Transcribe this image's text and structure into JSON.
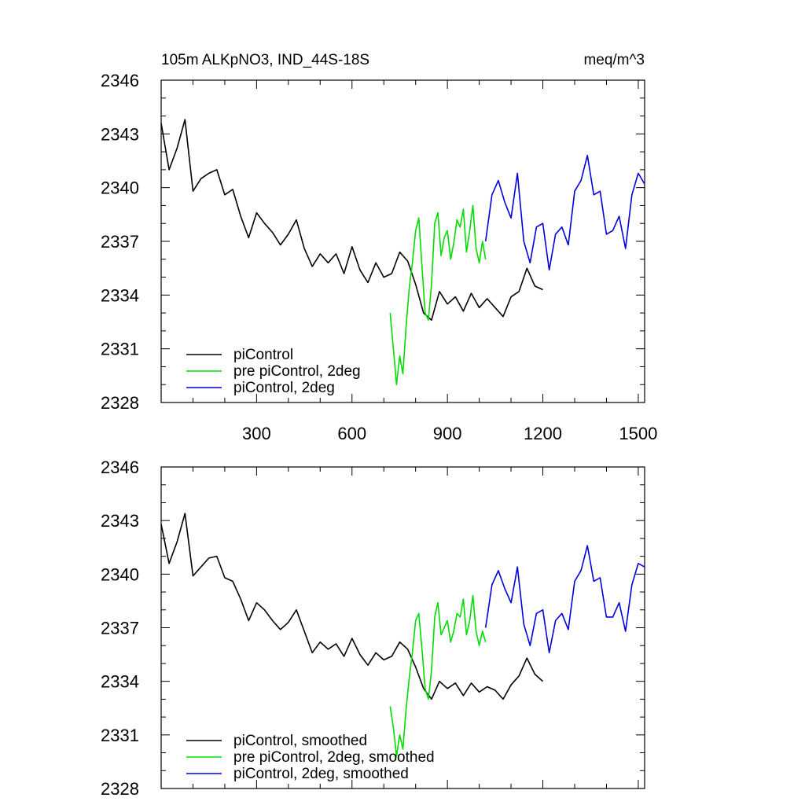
{
  "chart_data": [
    {
      "type": "line",
      "title_left": "105m ALKpNO3, IND_44S-18S",
      "title_right": "meq/m^3",
      "xlim": [
        0,
        1520
      ],
      "ylim": [
        2328,
        2346
      ],
      "xticks": [
        300,
        600,
        900,
        1200,
        1500
      ],
      "yticks": [
        2328,
        2331,
        2334,
        2337,
        2340,
        2343,
        2346
      ],
      "show_xtick_labels": true,
      "series": [
        {
          "name": "piControl",
          "color": "#000000",
          "x": [
            0,
            25,
            50,
            75,
            100,
            125,
            150,
            175,
            200,
            225,
            250,
            275,
            300,
            325,
            350,
            375,
            400,
            425,
            450,
            475,
            500,
            525,
            550,
            575,
            600,
            625,
            650,
            675,
            700,
            725,
            750,
            775,
            800,
            825,
            850,
            875,
            900,
            925,
            950,
            975,
            1000,
            1025,
            1050,
            1075,
            1100,
            1125,
            1150,
            1175,
            1200
          ],
          "values": [
            2343.6,
            2341.0,
            2342.2,
            2343.8,
            2339.8,
            2340.5,
            2340.8,
            2341.0,
            2339.6,
            2339.9,
            2338.4,
            2337.2,
            2338.6,
            2338.0,
            2337.5,
            2336.8,
            2337.4,
            2338.2,
            2336.6,
            2335.6,
            2336.3,
            2335.8,
            2336.3,
            2335.2,
            2336.7,
            2335.4,
            2334.7,
            2335.8,
            2335.0,
            2335.2,
            2336.4,
            2335.9,
            2334.6,
            2333.0,
            2332.6,
            2334.2,
            2333.5,
            2333.9,
            2333.1,
            2334.1,
            2333.3,
            2333.8,
            2333.3,
            2332.8,
            2333.9,
            2334.2,
            2335.5,
            2334.5,
            2334.3
          ]
        },
        {
          "name": "pre piControl, 2deg",
          "color": "#00dd00",
          "x": [
            720,
            730,
            740,
            750,
            760,
            770,
            780,
            790,
            800,
            810,
            820,
            830,
            840,
            850,
            860,
            870,
            880,
            890,
            900,
            910,
            920,
            930,
            940,
            950,
            960,
            970,
            980,
            990,
            1000,
            1010,
            1020
          ],
          "values": [
            2333.0,
            2331.0,
            2329.0,
            2330.6,
            2329.6,
            2332.2,
            2334.4,
            2335.8,
            2337.6,
            2338.3,
            2335.6,
            2333.0,
            2332.6,
            2334.6,
            2338.0,
            2338.6,
            2336.2,
            2337.2,
            2337.6,
            2336.0,
            2336.9,
            2338.2,
            2337.8,
            2338.8,
            2336.4,
            2337.6,
            2339.0,
            2336.6,
            2335.8,
            2337.0,
            2336.0
          ]
        },
        {
          "name": "piControl, 2deg",
          "color": "#0000dd",
          "x": [
            1020,
            1040,
            1060,
            1080,
            1100,
            1120,
            1140,
            1160,
            1180,
            1200,
            1220,
            1240,
            1260,
            1280,
            1300,
            1320,
            1340,
            1360,
            1380,
            1400,
            1420,
            1440,
            1460,
            1480,
            1500,
            1520
          ],
          "values": [
            2337.0,
            2339.6,
            2340.4,
            2339.2,
            2338.3,
            2340.8,
            2337.0,
            2335.8,
            2337.8,
            2338.0,
            2335.4,
            2337.4,
            2337.8,
            2336.8,
            2339.8,
            2340.4,
            2341.8,
            2339.6,
            2339.8,
            2337.4,
            2337.6,
            2338.4,
            2336.6,
            2339.6,
            2340.8,
            2340.2
          ]
        }
      ]
    },
    {
      "type": "line",
      "xlim": [
        0,
        1520
      ],
      "ylim": [
        2328,
        2346
      ],
      "xticks": [
        300,
        600,
        900,
        1200,
        1500
      ],
      "yticks": [
        2328,
        2331,
        2334,
        2337,
        2340,
        2343,
        2346
      ],
      "show_xtick_labels": false,
      "series": [
        {
          "name": "piControl, smoothed",
          "color": "#000000",
          "x": [
            0,
            25,
            50,
            75,
            100,
            125,
            150,
            175,
            200,
            225,
            250,
            275,
            300,
            325,
            350,
            375,
            400,
            425,
            450,
            475,
            500,
            525,
            550,
            575,
            600,
            625,
            650,
            675,
            700,
            725,
            750,
            775,
            800,
            825,
            850,
            875,
            900,
            925,
            950,
            975,
            1000,
            1025,
            1050,
            1075,
            1100,
            1125,
            1150,
            1175,
            1200
          ],
          "values": [
            2342.8,
            2340.6,
            2341.8,
            2343.4,
            2339.9,
            2340.4,
            2340.9,
            2341.0,
            2339.8,
            2339.6,
            2338.6,
            2337.4,
            2338.4,
            2338.0,
            2337.4,
            2336.9,
            2337.3,
            2338.0,
            2336.8,
            2335.6,
            2336.2,
            2335.8,
            2336.1,
            2335.4,
            2336.4,
            2335.5,
            2334.9,
            2335.6,
            2335.2,
            2335.4,
            2336.2,
            2335.8,
            2334.8,
            2333.6,
            2333.0,
            2334.0,
            2333.6,
            2333.9,
            2333.2,
            2333.9,
            2333.4,
            2333.7,
            2333.5,
            2333.0,
            2333.8,
            2334.3,
            2335.3,
            2334.4,
            2334.0
          ]
        },
        {
          "name": "pre piControl, 2deg, smoothed",
          "color": "#00dd00",
          "x": [
            720,
            730,
            740,
            750,
            760,
            770,
            780,
            790,
            800,
            810,
            820,
            830,
            840,
            850,
            860,
            870,
            880,
            890,
            900,
            910,
            920,
            930,
            940,
            950,
            960,
            970,
            980,
            990,
            1000,
            1010,
            1020
          ],
          "values": [
            2332.6,
            2331.4,
            2329.8,
            2331.0,
            2330.2,
            2332.4,
            2334.2,
            2335.6,
            2337.4,
            2337.8,
            2335.8,
            2333.6,
            2333.0,
            2334.6,
            2337.6,
            2338.4,
            2336.6,
            2337.0,
            2337.4,
            2336.2,
            2336.8,
            2337.8,
            2337.6,
            2338.6,
            2336.6,
            2337.4,
            2338.8,
            2336.8,
            2336.0,
            2336.8,
            2336.2
          ]
        },
        {
          "name": "piControl, 2deg, smoothed",
          "color": "#0000dd",
          "x": [
            1020,
            1040,
            1060,
            1080,
            1100,
            1120,
            1140,
            1160,
            1180,
            1200,
            1220,
            1240,
            1260,
            1280,
            1300,
            1320,
            1340,
            1360,
            1380,
            1400,
            1420,
            1440,
            1460,
            1480,
            1500,
            1520
          ],
          "values": [
            2337.0,
            2339.4,
            2340.2,
            2339.2,
            2338.4,
            2340.4,
            2337.2,
            2336.0,
            2337.8,
            2338.0,
            2335.6,
            2337.4,
            2337.8,
            2336.9,
            2339.6,
            2340.2,
            2341.6,
            2339.6,
            2339.8,
            2337.6,
            2337.6,
            2338.4,
            2336.8,
            2339.4,
            2340.6,
            2340.4
          ]
        }
      ]
    }
  ]
}
